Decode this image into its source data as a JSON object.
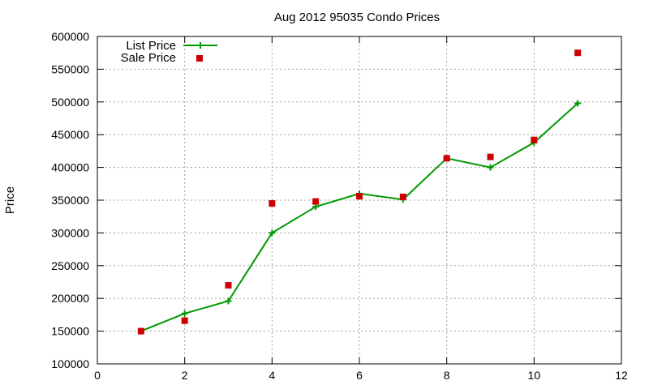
{
  "chart_data": {
    "type": "line",
    "title": "Aug 2012 95035 Condo Prices",
    "xlabel": "",
    "ylabel": "Price",
    "xlim": [
      0,
      12
    ],
    "ylim": [
      100000,
      600000
    ],
    "x_ticks": [
      0,
      2,
      4,
      6,
      8,
      10,
      12
    ],
    "y_ticks": [
      100000,
      150000,
      200000,
      250000,
      300000,
      350000,
      400000,
      450000,
      500000,
      550000,
      600000
    ],
    "grid": true,
    "legend_position": "top-left",
    "series": [
      {
        "name": "List Price",
        "style": "line-with-plus-markers",
        "color": "#009900",
        "x": [
          1,
          2,
          3,
          4,
          5,
          6,
          7,
          8,
          9,
          10,
          11
        ],
        "values": [
          150000,
          177000,
          196000,
          300000,
          340000,
          360000,
          351000,
          414000,
          400000,
          438000,
          498000
        ]
      },
      {
        "name": "Sale Price",
        "style": "square-markers",
        "color": "#cc0000",
        "x": [
          1,
          2,
          3,
          4,
          5,
          6,
          7,
          8,
          9,
          10,
          11
        ],
        "values": [
          150000,
          166000,
          220000,
          345000,
          348000,
          356000,
          355000,
          414000,
          416000,
          442000,
          575000
        ]
      }
    ]
  }
}
